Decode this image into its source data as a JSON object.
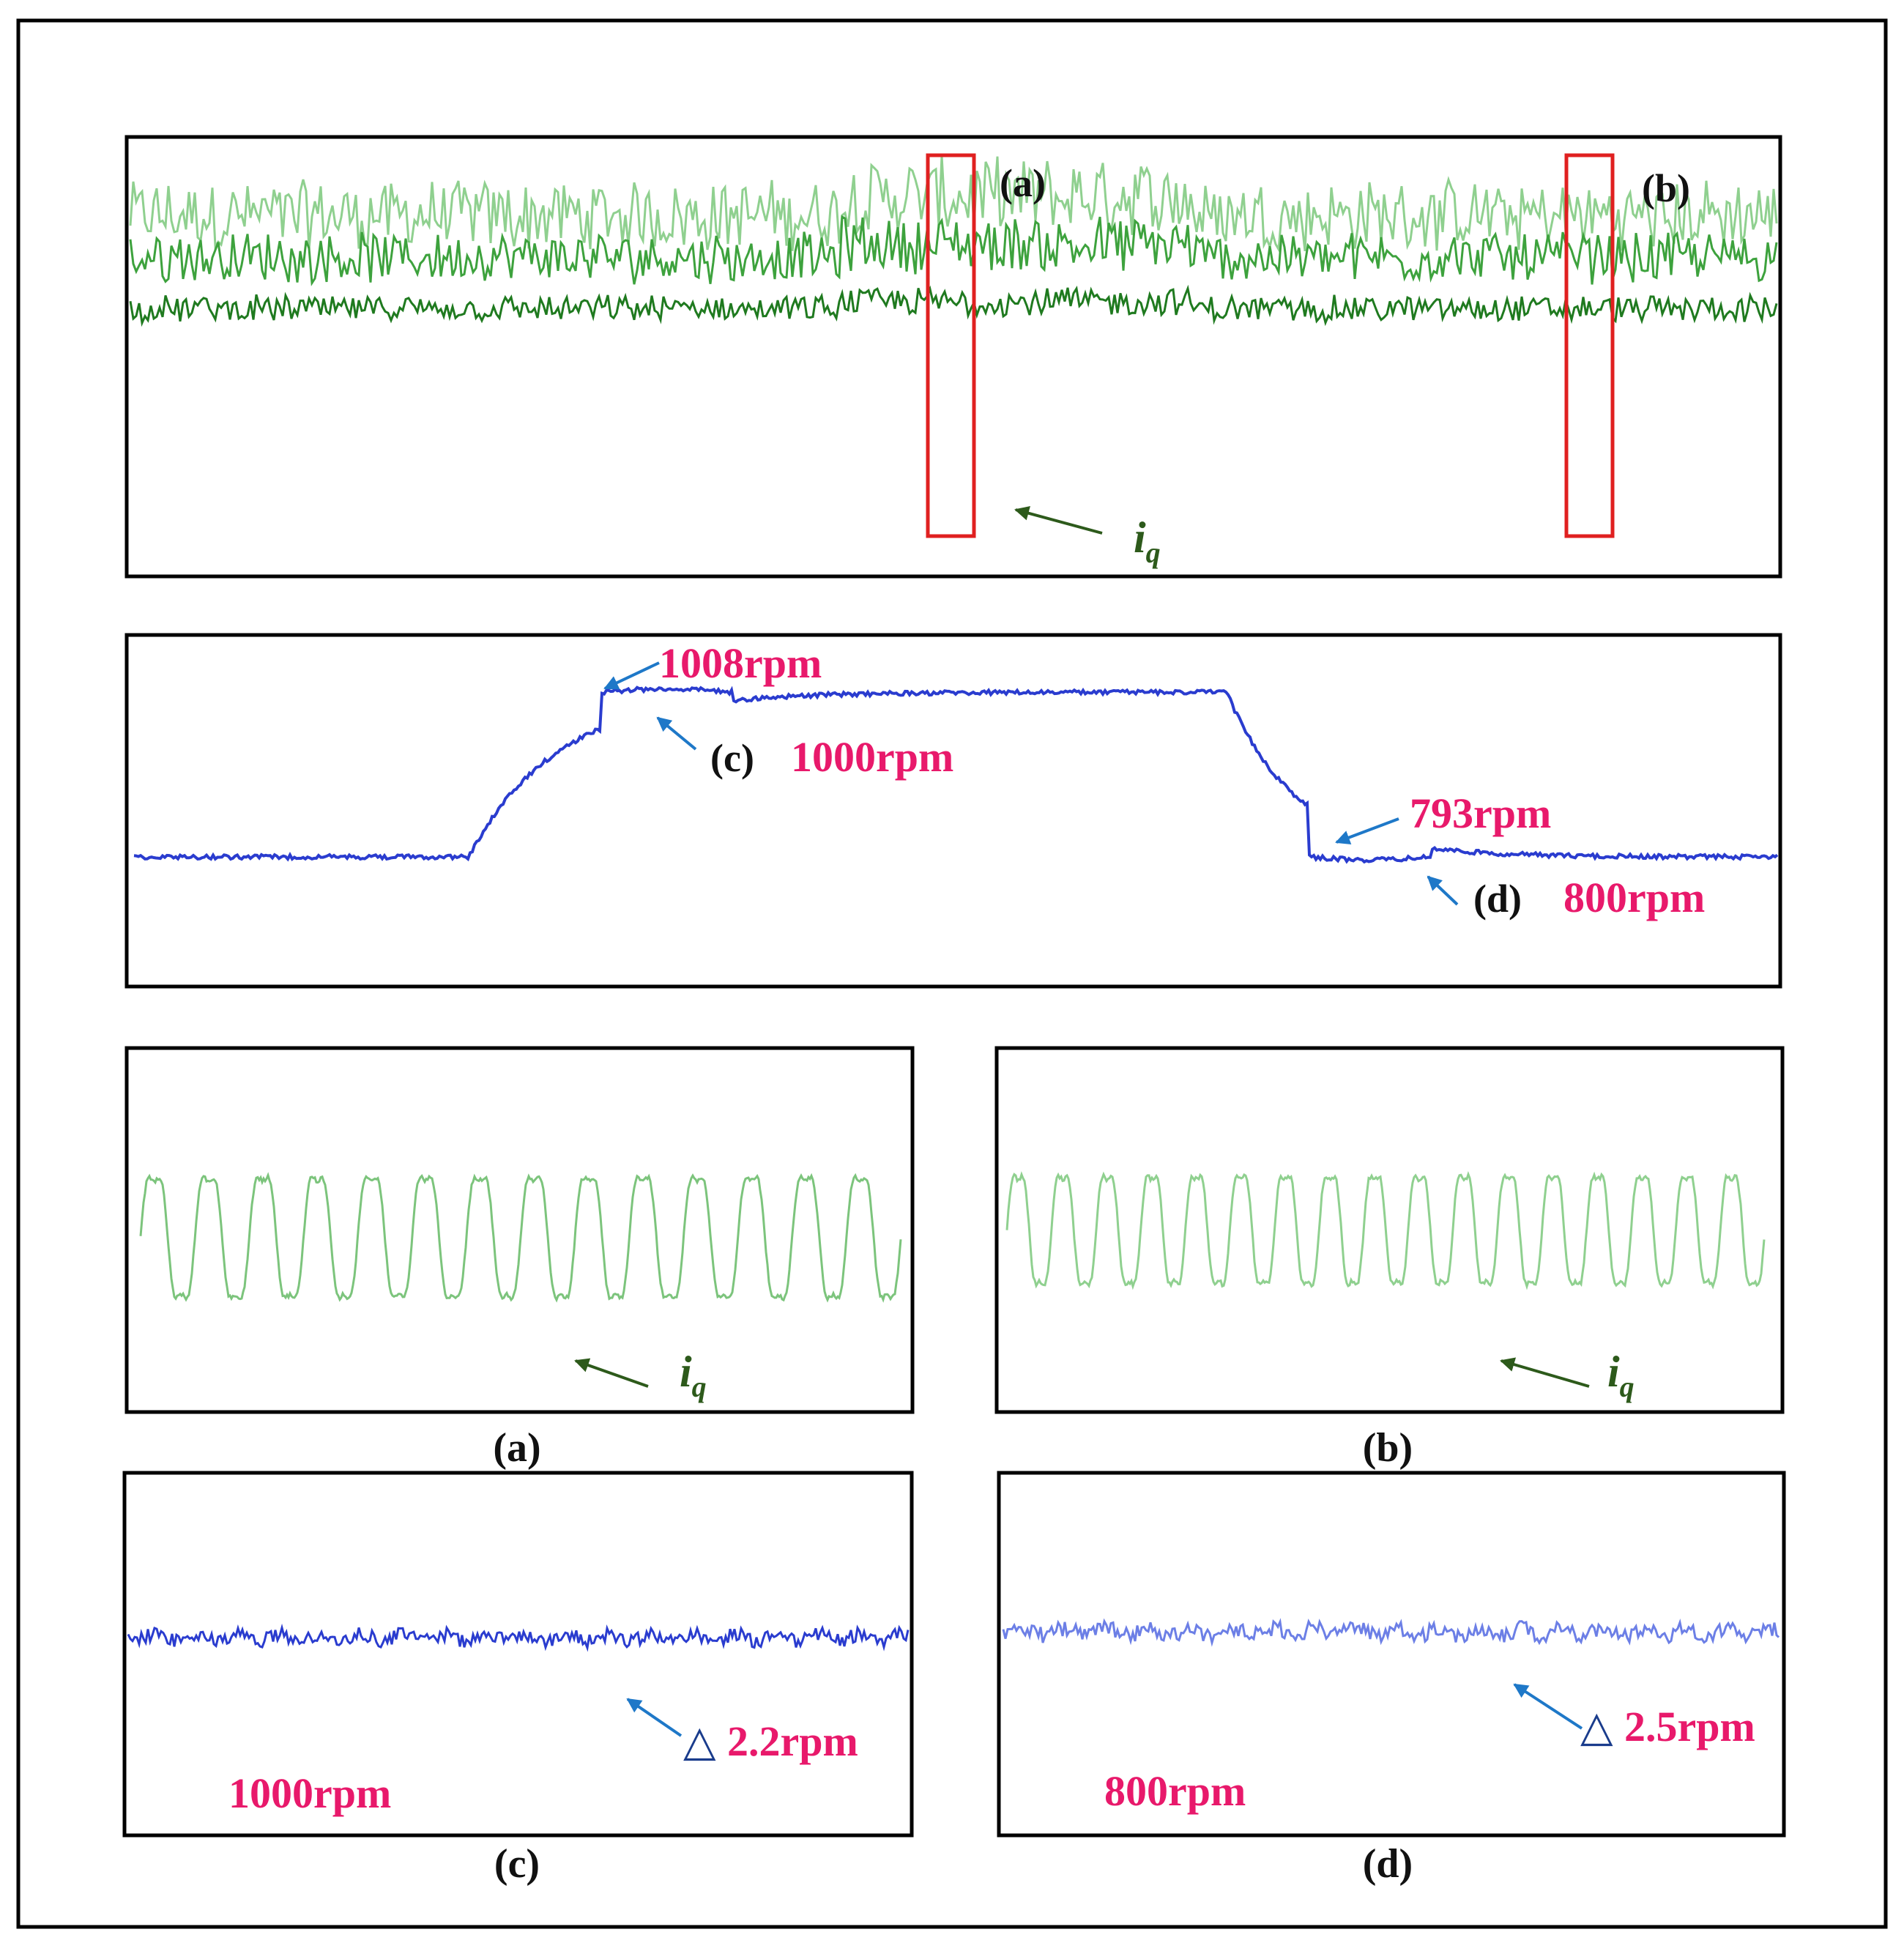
{
  "colors": {
    "iq_dark": "#1f7a1f",
    "iq_mid": "#3da23d",
    "iq_light": "#8fd08f",
    "iq_zoom": "#7cc47c",
    "speed": "#2a3ccf",
    "speed_light": "#6c7fe6",
    "arrow_blue": "#1e78c8",
    "arrow_green": "#2d5a1b",
    "pink": "#e8196b",
    "marker_red": "#e02020",
    "frame": "#000000"
  },
  "top_panel": {
    "marker_a": "(a)",
    "marker_b": "(b)",
    "signal_label": "i",
    "signal_sub": "q"
  },
  "speed_panel": {
    "overshoot_label": "1008rpm",
    "c_tag": "(c)",
    "c_value": "1000rpm",
    "undershoot_label": "793rpm",
    "d_tag": "(d)",
    "d_value": "800rpm"
  },
  "zoom_a": {
    "signal_label": "i",
    "signal_sub": "q",
    "caption": "(a)"
  },
  "zoom_b": {
    "signal_label": "i",
    "signal_sub": "q",
    "caption": "(b)"
  },
  "zoom_c": {
    "delta_symbol": "△",
    "delta_value": "2.2rpm",
    "speed_label": "1000rpm",
    "caption": "(c)"
  },
  "zoom_d": {
    "delta_symbol": "△",
    "delta_value": "2.5rpm",
    "speed_label": "800rpm",
    "caption": "(d)"
  },
  "chart_data": [
    {
      "type": "line",
      "panel": "iq current waveform (full run)",
      "series": [
        {
          "name": "i_q"
        }
      ],
      "segments": [
        {
          "state": "800rpm steady",
          "relative_amplitude": 1.0
        },
        {
          "state": "1000rpm",
          "relative_amplitude": 1.12
        },
        {
          "state": "800rpm steady",
          "relative_amplitude": 1.0
        }
      ],
      "highlighted_windows": [
        "(a)",
        "(b)"
      ]
    },
    {
      "type": "line",
      "panel": "speed response",
      "series": [
        {
          "name": "speed"
        }
      ],
      "annotations": [
        {
          "label": "1008rpm",
          "value": 1008
        },
        {
          "label": "1000rpm",
          "value": 1000
        },
        {
          "label": "793rpm",
          "value": 793
        },
        {
          "label": "800rpm",
          "value": 800
        }
      ],
      "levels_rpm": [
        800,
        1000,
        800
      ]
    },
    {
      "type": "line",
      "panel": "(a)",
      "series": [
        {
          "name": "i_q"
        }
      ],
      "cycles": 14
    },
    {
      "type": "line",
      "panel": "(b)",
      "series": [
        {
          "name": "i_q"
        }
      ],
      "cycles": 17
    },
    {
      "type": "line",
      "panel": "(c)",
      "series": [
        {
          "name": "speed"
        }
      ],
      "ripple_rpm": 2.2,
      "speed_rpm": 1000
    },
    {
      "type": "line",
      "panel": "(d)",
      "series": [
        {
          "name": "speed"
        }
      ],
      "ripple_rpm": 2.5,
      "speed_rpm": 800
    }
  ]
}
